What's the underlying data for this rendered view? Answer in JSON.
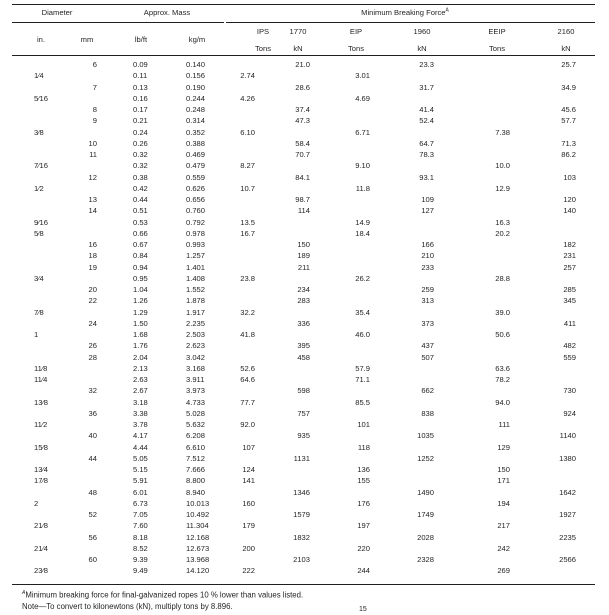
{
  "header": {
    "diameter": "Diameter",
    "approx_mass": "Approx. Mass",
    "min_breaking_force": "Minimum Breaking Force",
    "footnote_marker": "A",
    "units": [
      "in.",
      "mm",
      "lb/ft",
      "kg/m"
    ],
    "mbf_columns": [
      {
        "grade": "IPS",
        "unit": "Tons"
      },
      {
        "grade": "1770",
        "unit": "kN"
      },
      {
        "grade": "EIP",
        "unit": "Tons"
      },
      {
        "grade": "1960",
        "unit": "kN"
      },
      {
        "grade": "EEIP",
        "unit": "Tons"
      },
      {
        "grade": "2160",
        "unit": "kN"
      }
    ]
  },
  "rows": [
    {
      "in": "",
      "mm": "6",
      "lbft": "0.09",
      "kgm": "0.140",
      "ips": "",
      "k1770": "21.0",
      "eip": "",
      "k1960": "23.3",
      "eeip": "",
      "k2160": "25.7"
    },
    {
      "in": "1⁄4",
      "mm": "",
      "lbft": "0.11",
      "kgm": "0.156",
      "ips": "2.74",
      "k1770": "",
      "eip": "3.01",
      "k1960": "",
      "eeip": "",
      "k2160": ""
    },
    {
      "in": "",
      "mm": "7",
      "lbft": "0.13",
      "kgm": "0.190",
      "ips": "",
      "k1770": "28.6",
      "eip": "",
      "k1960": "31.7",
      "eeip": "",
      "k2160": "34.9"
    },
    {
      "in": "5⁄16",
      "mm": "",
      "lbft": "0.16",
      "kgm": "0.244",
      "ips": "4.26",
      "k1770": "",
      "eip": "4.69",
      "k1960": "",
      "eeip": "",
      "k2160": ""
    },
    {
      "in": "",
      "mm": "8",
      "lbft": "0.17",
      "kgm": "0.248",
      "ips": "",
      "k1770": "37.4",
      "eip": "",
      "k1960": "41.4",
      "eeip": "",
      "k2160": "45.6"
    },
    {
      "in": "",
      "mm": "9",
      "lbft": "0.21",
      "kgm": "0.314",
      "ips": "",
      "k1770": "47.3",
      "eip": "",
      "k1960": "52.4",
      "eeip": "",
      "k2160": "57.7"
    },
    {
      "in": "3⁄8",
      "mm": "",
      "lbft": "0.24",
      "kgm": "0.352",
      "ips": "6.10",
      "k1770": "",
      "eip": "6.71",
      "k1960": "",
      "eeip": "7.38",
      "k2160": ""
    },
    {
      "in": "",
      "mm": "10",
      "lbft": "0.26",
      "kgm": "0.388",
      "ips": "",
      "k1770": "58.4",
      "eip": "",
      "k1960": "64.7",
      "eeip": "",
      "k2160": "71.3"
    },
    {
      "in": "",
      "mm": "11",
      "lbft": "0.32",
      "kgm": "0.469",
      "ips": "",
      "k1770": "70.7",
      "eip": "",
      "k1960": "78.3",
      "eeip": "",
      "k2160": "86.2"
    },
    {
      "in": "7⁄16",
      "mm": "",
      "lbft": "0.32",
      "kgm": "0.479",
      "ips": "8.27",
      "k1770": "",
      "eip": "9.10",
      "k1960": "",
      "eeip": "10.0",
      "k2160": ""
    },
    {
      "in": "",
      "mm": "12",
      "lbft": "0.38",
      "kgm": "0.559",
      "ips": "",
      "k1770": "84.1",
      "eip": "",
      "k1960": "93.1",
      "eeip": "",
      "k2160": "103"
    },
    {
      "in": "1⁄2",
      "mm": "",
      "lbft": "0.42",
      "kgm": "0.626",
      "ips": "10.7",
      "k1770": "",
      "eip": "11.8",
      "k1960": "",
      "eeip": "12.9",
      "k2160": ""
    },
    {
      "in": "",
      "mm": "13",
      "lbft": "0.44",
      "kgm": "0.656",
      "ips": "",
      "k1770": "98.7",
      "eip": "",
      "k1960": "109",
      "eeip": "",
      "k2160": "120"
    },
    {
      "in": "",
      "mm": "14",
      "lbft": "0.51",
      "kgm": "0.760",
      "ips": "",
      "k1770": "114",
      "eip": "",
      "k1960": "127",
      "eeip": "",
      "k2160": "140"
    },
    {
      "in": "9⁄16",
      "mm": "",
      "lbft": "0.53",
      "kgm": "0.792",
      "ips": "13.5",
      "k1770": "",
      "eip": "14.9",
      "k1960": "",
      "eeip": "16.3",
      "k2160": ""
    },
    {
      "in": "5⁄8",
      "mm": "",
      "lbft": "0.66",
      "kgm": "0.978",
      "ips": "16.7",
      "k1770": "",
      "eip": "18.4",
      "k1960": "",
      "eeip": "20.2",
      "k2160": ""
    },
    {
      "in": "",
      "mm": "16",
      "lbft": "0.67",
      "kgm": "0.993",
      "ips": "",
      "k1770": "150",
      "eip": "",
      "k1960": "166",
      "eeip": "",
      "k2160": "182"
    },
    {
      "in": "",
      "mm": "18",
      "lbft": "0.84",
      "kgm": "1.257",
      "ips": "",
      "k1770": "189",
      "eip": "",
      "k1960": "210",
      "eeip": "",
      "k2160": "231"
    },
    {
      "in": "",
      "mm": "19",
      "lbft": "0.94",
      "kgm": "1.401",
      "ips": "",
      "k1770": "211",
      "eip": "",
      "k1960": "233",
      "eeip": "",
      "k2160": "257"
    },
    {
      "in": "3⁄4",
      "mm": "",
      "lbft": "0.95",
      "kgm": "1.408",
      "ips": "23.8",
      "k1770": "",
      "eip": "26.2",
      "k1960": "",
      "eeip": "28.8",
      "k2160": ""
    },
    {
      "in": "",
      "mm": "20",
      "lbft": "1.04",
      "kgm": "1.552",
      "ips": "",
      "k1770": "234",
      "eip": "",
      "k1960": "259",
      "eeip": "",
      "k2160": "285"
    },
    {
      "in": "",
      "mm": "22",
      "lbft": "1.26",
      "kgm": "1.878",
      "ips": "",
      "k1770": "283",
      "eip": "",
      "k1960": "313",
      "eeip": "",
      "k2160": "345"
    },
    {
      "in": "7⁄8",
      "mm": "",
      "lbft": "1.29",
      "kgm": "1.917",
      "ips": "32.2",
      "k1770": "",
      "eip": "35.4",
      "k1960": "",
      "eeip": "39.0",
      "k2160": ""
    },
    {
      "in": "",
      "mm": "24",
      "lbft": "1.50",
      "kgm": "2.235",
      "ips": "",
      "k1770": "336",
      "eip": "",
      "k1960": "373",
      "eeip": "",
      "k2160": "411"
    },
    {
      "in": "1",
      "mm": "",
      "lbft": "1.68",
      "kgm": "2.503",
      "ips": "41.8",
      "k1770": "",
      "eip": "46.0",
      "k1960": "",
      "eeip": "50.6",
      "k2160": ""
    },
    {
      "in": "",
      "mm": "26",
      "lbft": "1.76",
      "kgm": "2.623",
      "ips": "",
      "k1770": "395",
      "eip": "",
      "k1960": "437",
      "eeip": "",
      "k2160": "482"
    },
    {
      "in": "",
      "mm": "28",
      "lbft": "2.04",
      "kgm": "3.042",
      "ips": "",
      "k1770": "458",
      "eip": "",
      "k1960": "507",
      "eeip": "",
      "k2160": "559"
    },
    {
      "in": "11⁄8",
      "mm": "",
      "lbft": "2.13",
      "kgm": "3.168",
      "ips": "52.6",
      "k1770": "",
      "eip": "57.9",
      "k1960": "",
      "eeip": "63.6",
      "k2160": ""
    },
    {
      "in": "11⁄4",
      "mm": "",
      "lbft": "2.63",
      "kgm": "3.911",
      "ips": "64.6",
      "k1770": "",
      "eip": "71.1",
      "k1960": "",
      "eeip": "78.2",
      "k2160": ""
    },
    {
      "in": "",
      "mm": "32",
      "lbft": "2.67",
      "kgm": "3.973",
      "ips": "",
      "k1770": "598",
      "eip": "",
      "k1960": "662",
      "eeip": "",
      "k2160": "730"
    },
    {
      "in": "13⁄8",
      "mm": "",
      "lbft": "3.18",
      "kgm": "4.733",
      "ips": "77.7",
      "k1770": "",
      "eip": "85.5",
      "k1960": "",
      "eeip": "94.0",
      "k2160": ""
    },
    {
      "in": "",
      "mm": "36",
      "lbft": "3.38",
      "kgm": "5.028",
      "ips": "",
      "k1770": "757",
      "eip": "",
      "k1960": "838",
      "eeip": "",
      "k2160": "924"
    },
    {
      "in": "11⁄2",
      "mm": "",
      "lbft": "3.78",
      "kgm": "5.632",
      "ips": "92.0",
      "k1770": "",
      "eip": "101",
      "k1960": "",
      "eeip": "111",
      "k2160": ""
    },
    {
      "in": "",
      "mm": "40",
      "lbft": "4.17",
      "kgm": "6.208",
      "ips": "",
      "k1770": "935",
      "eip": "",
      "k1960": "1035",
      "eeip": "",
      "k2160": "1140"
    },
    {
      "in": "15⁄8",
      "mm": "",
      "lbft": "4.44",
      "kgm": "6.610",
      "ips": "107",
      "k1770": "",
      "eip": "118",
      "k1960": "",
      "eeip": "129",
      "k2160": ""
    },
    {
      "in": "",
      "mm": "44",
      "lbft": "5.05",
      "kgm": "7.512",
      "ips": "",
      "k1770": "1131",
      "eip": "",
      "k1960": "1252",
      "eeip": "",
      "k2160": "1380"
    },
    {
      "in": "13⁄4",
      "mm": "",
      "lbft": "5.15",
      "kgm": "7.666",
      "ips": "124",
      "k1770": "",
      "eip": "136",
      "k1960": "",
      "eeip": "150",
      "k2160": ""
    },
    {
      "in": "17⁄8",
      "mm": "",
      "lbft": "5.91",
      "kgm": "8.800",
      "ips": "141",
      "k1770": "",
      "eip": "155",
      "k1960": "",
      "eeip": "171",
      "k2160": ""
    },
    {
      "in": "",
      "mm": "48",
      "lbft": "6.01",
      "kgm": "8.940",
      "ips": "",
      "k1770": "1346",
      "eip": "",
      "k1960": "1490",
      "eeip": "",
      "k2160": "1642"
    },
    {
      "in": "2",
      "mm": "",
      "lbft": "6.73",
      "kgm": "10.013",
      "ips": "160",
      "k1770": "",
      "eip": "176",
      "k1960": "",
      "eeip": "194",
      "k2160": ""
    },
    {
      "in": "",
      "mm": "52",
      "lbft": "7.05",
      "kgm": "10.492",
      "ips": "",
      "k1770": "1579",
      "eip": "",
      "k1960": "1749",
      "eeip": "",
      "k2160": "1927"
    },
    {
      "in": "21⁄8",
      "mm": "",
      "lbft": "7.60",
      "kgm": "11.304",
      "ips": "179",
      "k1770": "",
      "eip": "197",
      "k1960": "",
      "eeip": "217",
      "k2160": ""
    },
    {
      "in": "",
      "mm": "56",
      "lbft": "8.18",
      "kgm": "12.168",
      "ips": "",
      "k1770": "1832",
      "eip": "",
      "k1960": "2028",
      "eeip": "",
      "k2160": "2235"
    },
    {
      "in": "21⁄4",
      "mm": "",
      "lbft": "8.52",
      "kgm": "12.673",
      "ips": "200",
      "k1770": "",
      "eip": "220",
      "k1960": "",
      "eeip": "242",
      "k2160": ""
    },
    {
      "in": "",
      "mm": "60",
      "lbft": "9.39",
      "kgm": "13.968",
      "ips": "",
      "k1770": "2103",
      "eip": "",
      "k1960": "2328",
      "eeip": "",
      "k2160": "2566"
    },
    {
      "in": "23⁄8",
      "mm": "",
      "lbft": "9.49",
      "kgm": "14.120",
      "ips": "222",
      "k1770": "",
      "eip": "244",
      "k1960": "",
      "eeip": "269",
      "k2160": ""
    }
  ],
  "footnotes": {
    "marker": "A",
    "footnote_a": "Minimum breaking force for final-galvanized ropes 10 % lower than values listed.",
    "note": "Note—To convert to kilonewtons (kN), multiply tons by 8.896."
  },
  "page_number": "15"
}
